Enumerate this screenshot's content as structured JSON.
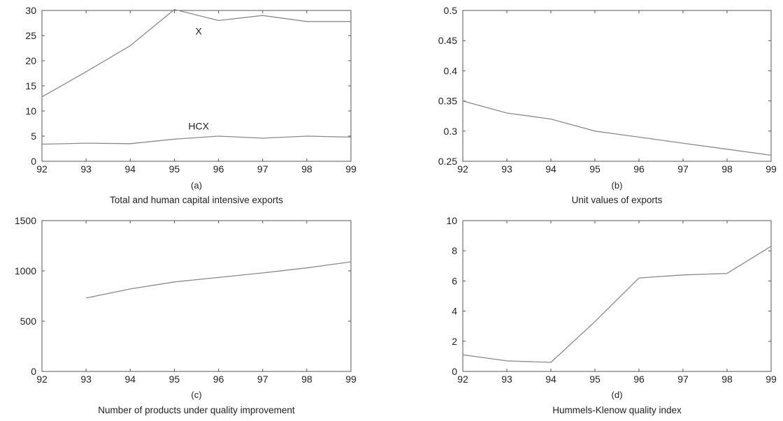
{
  "colors": {
    "line": "#8a8a8a",
    "frame": "#555555",
    "text": "#222222"
  },
  "chart_data": [
    {
      "type": "line",
      "subplot_label": "(a)",
      "title": "Total and human capital intensive exports",
      "xlabel": "",
      "ylabel": "",
      "xlim": [
        92,
        99
      ],
      "ylim": [
        0,
        30
      ],
      "xticks": [
        "92",
        "93",
        "94",
        "95",
        "96",
        "97",
        "98",
        "99"
      ],
      "yticks": [
        "0",
        "5",
        "10",
        "15",
        "20",
        "25",
        "30"
      ],
      "x": [
        92,
        93,
        94,
        95,
        96,
        97,
        98,
        99
      ],
      "series": [
        {
          "name": "X",
          "values": [
            12.8,
            17.8,
            23,
            30.2,
            28,
            29,
            27.8,
            27.8
          ],
          "label_at": [
            95.55,
            25.2
          ]
        },
        {
          "name": "HCX",
          "values": [
            3.4,
            3.6,
            3.5,
            4.4,
            5,
            4.6,
            5,
            4.8
          ],
          "label_at": [
            95.55,
            6.3
          ]
        }
      ]
    },
    {
      "type": "line",
      "subplot_label": "(b)",
      "title": "Unit values of exports",
      "xlabel": "",
      "ylabel": "",
      "xlim": [
        92,
        99
      ],
      "ylim": [
        0.25,
        0.5
      ],
      "xticks": [
        "92",
        "93",
        "94",
        "95",
        "96",
        "97",
        "98",
        "99"
      ],
      "yticks": [
        "0.25",
        "0.3",
        "0.35",
        "0.4",
        "0.45",
        "0.5"
      ],
      "x": [
        92,
        93,
        94,
        95,
        96,
        97,
        98,
        99
      ],
      "series": [
        {
          "values": [
            0.35,
            0.33,
            0.32,
            0.3,
            0.29,
            0.28,
            0.27,
            0.26
          ]
        }
      ]
    },
    {
      "type": "line",
      "subplot_label": "(c)",
      "title": "Number of products under quality improvement",
      "xlabel": "",
      "ylabel": "",
      "xlim": [
        92,
        99
      ],
      "ylim": [
        0,
        1500
      ],
      "xticks": [
        "92",
        "93",
        "94",
        "95",
        "96",
        "97",
        "98",
        "99"
      ],
      "yticks": [
        "0",
        "500",
        "1000",
        "1500"
      ],
      "x": [
        93,
        94,
        95,
        96,
        97,
        98,
        99
      ],
      "series": [
        {
          "values": [
            730,
            820,
            890,
            935,
            980,
            1030,
            1090
          ]
        }
      ]
    },
    {
      "type": "line",
      "subplot_label": "(d)",
      "title": "Hummels-Klenow quality index",
      "xlabel": "",
      "ylabel": "",
      "xlim": [
        92,
        99
      ],
      "ylim": [
        0,
        10
      ],
      "xticks": [
        "92",
        "93",
        "94",
        "95",
        "96",
        "97",
        "98",
        "99"
      ],
      "yticks": [
        "0",
        "2",
        "4",
        "6",
        "8",
        "10"
      ],
      "x": [
        92,
        93,
        94,
        95,
        96,
        97,
        98,
        99
      ],
      "series": [
        {
          "values": [
            1.1,
            0.7,
            0.6,
            3.3,
            6.2,
            6.4,
            6.5,
            8.3
          ]
        }
      ]
    }
  ]
}
